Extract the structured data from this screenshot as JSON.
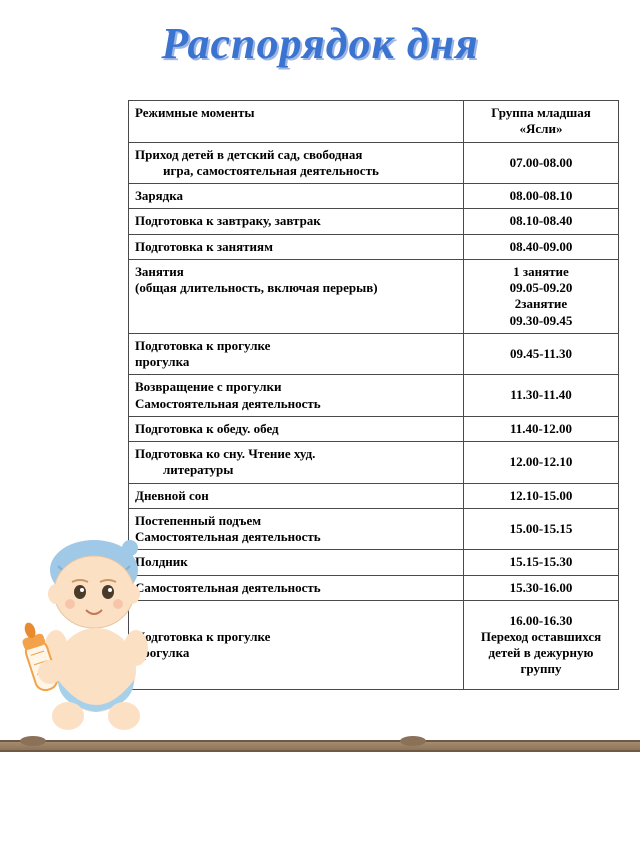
{
  "title": "Распорядок дня",
  "title_color": "#3b73d1",
  "title_shadow": "#9db6e2",
  "table": {
    "border_color": "#4a4a4a",
    "header": {
      "left": "Режимные моменты",
      "right": "Группа младшая «Ясли»"
    },
    "rows": [
      {
        "left_main": "Приход детей в детский сад, свободная",
        "left_indent": "игра, самостоятельная деятельность",
        "right": "07.00-08.00"
      },
      {
        "left_main": "Зарядка",
        "right": "08.00-08.10"
      },
      {
        "left_main": "Подготовка к завтраку, завтрак",
        "right": "08.10-08.40"
      },
      {
        "left_main": "Подготовка к занятиям",
        "right": "08.40-09.00"
      },
      {
        "left_main": "Занятия",
        "left_line2": "(общая длительность, включая перерыв)",
        "right": "1 занятие\n09.05-09.20\n2занятие\n09.30-09.45"
      },
      {
        "left_main": "Подготовка к прогулке",
        "left_line2": "прогулка",
        "right": "09.45-11.30"
      },
      {
        "left_main": "Возвращение с прогулки",
        "left_line2": "Самостоятельная деятельность",
        "right": "11.30-11.40"
      },
      {
        "left_main": "Подготовка к обеду. обед",
        "right": "11.40-12.00"
      },
      {
        "left_main": "Подготовка ко сну. Чтение худ.",
        "left_indent": "литературы",
        "right": "12.00-12.10"
      },
      {
        "left_main": "Дневной сон",
        "right": "12.10-15.00"
      },
      {
        "left_main": "Постепенный подъем",
        "left_line2": "Самостоятельная деятельность",
        "right": "15.00-15.15"
      },
      {
        "left_main": "Полдник",
        "right": "15.15-15.30"
      },
      {
        "left_main": "Самостоятельная деятельность",
        "right": "15.30-16.00"
      },
      {
        "left_main": "Подготовка к прогулке",
        "left_line2": "прогулка",
        "right": "16.00-16.30\nПереход оставшихся детей в дежурную группу",
        "tall": true
      }
    ]
  },
  "baby_colors": {
    "skin": "#fce0c4",
    "cap": "#9fc9e6",
    "diaper": "#a7d0ea",
    "bottle": "#f3a14b",
    "bottle_cap": "#e88b2e",
    "milk": "#fff6e8",
    "outline": "#b88e6a"
  }
}
